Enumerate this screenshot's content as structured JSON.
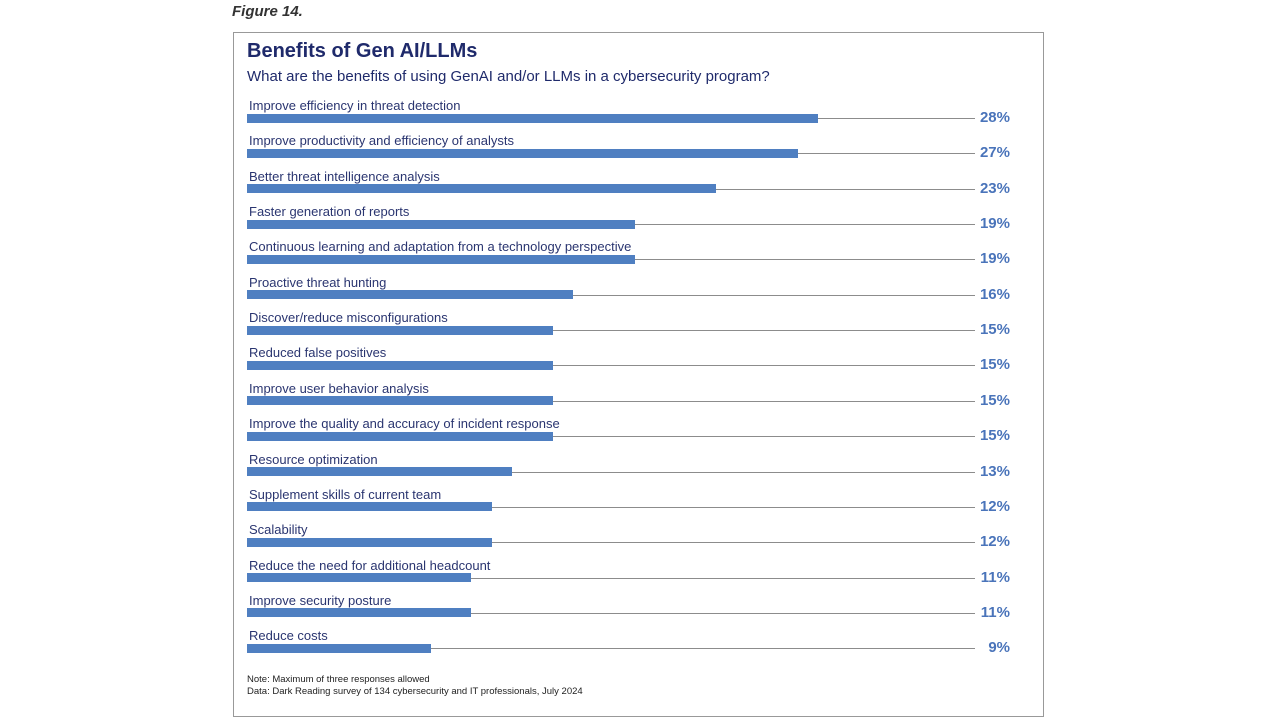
{
  "figure_label": "Figure 14.",
  "chart_data": {
    "type": "bar",
    "orientation": "horizontal",
    "title": "Benefits of Gen AI/LLMs",
    "subtitle": "What are the benefits of using GenAI and/or LLMs in a cybersecurity program?",
    "unit": "%",
    "bar_color": "#4f7fc1",
    "categories": [
      "Improve efficiency in threat detection",
      "Improve productivity and efficiency of analysts",
      "Better threat intelligence analysis",
      "Faster generation of reports",
      "Continuous learning and adaptation from a technology perspective",
      "Proactive threat hunting",
      "Discover/reduce misconfigurations",
      "Reduced false positives",
      "Improve user behavior analysis",
      "Improve the quality and accuracy of incident response",
      "Resource optimization",
      "Supplement skills of current team",
      "Scalability",
      "Reduce the need for additional headcount",
      "Improve security posture",
      "Reduce costs"
    ],
    "values": [
      28,
      27,
      23,
      19,
      19,
      16,
      15,
      15,
      15,
      15,
      13,
      12,
      12,
      11,
      11,
      9
    ],
    "value_labels": [
      "28%",
      "27%",
      "23%",
      "19%",
      "19%",
      "16%",
      "15%",
      "15%",
      "15%",
      "15%",
      "13%",
      "12%",
      "12%",
      "11%",
      "11%",
      "9%"
    ]
  },
  "notes": [
    "Note: Maximum of three responses allowed",
    "Data: Dark Reading survey of 134 cybersecurity and IT professionals, July 2024"
  ]
}
